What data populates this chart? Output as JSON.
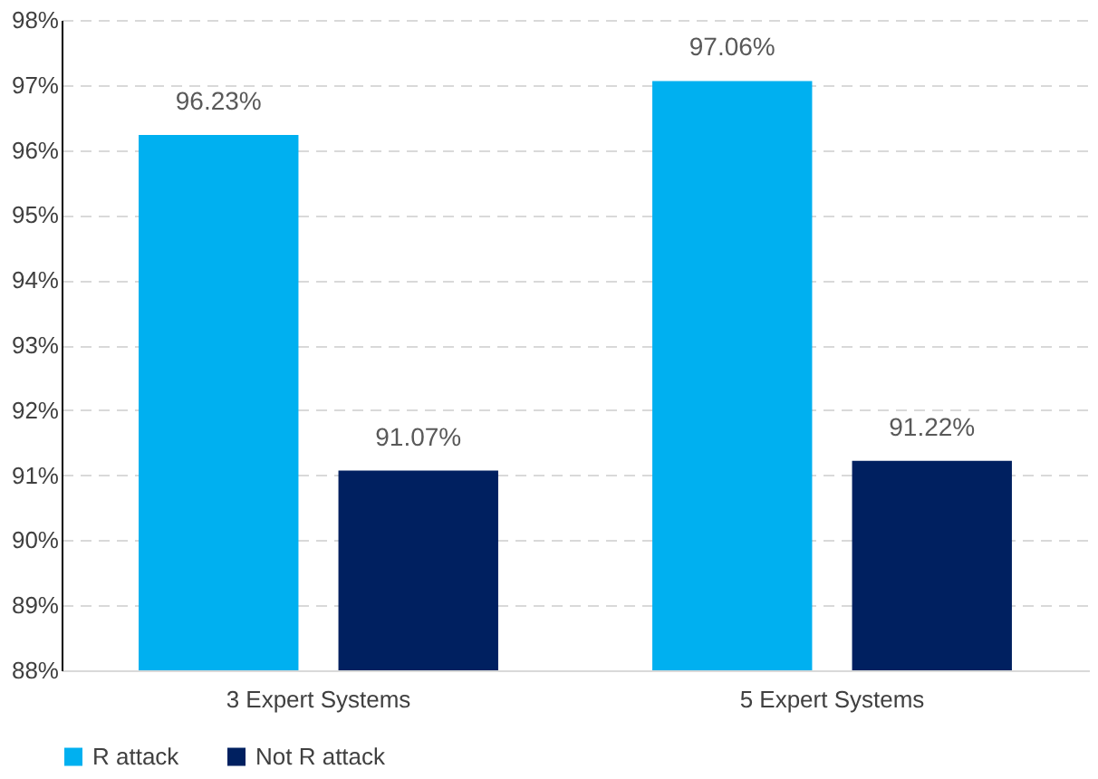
{
  "chart_data": {
    "type": "bar",
    "categories": [
      "3 Expert Systems",
      "5 Expert Systems"
    ],
    "series": [
      {
        "name": "R attack",
        "color": "#00b0f0",
        "values": [
          96.23,
          97.06
        ],
        "value_labels": [
          "96.23%",
          "97.06%"
        ]
      },
      {
        "name": "Not R attack",
        "color": "#002060",
        "values": [
          91.07,
          91.22
        ],
        "value_labels": [
          "91.07%",
          "91.22%"
        ]
      }
    ],
    "ylim": [
      88,
      98
    ],
    "yticks": [
      {
        "value": 88,
        "label": "88%"
      },
      {
        "value": 89,
        "label": "89%"
      },
      {
        "value": 90,
        "label": "90%"
      },
      {
        "value": 91,
        "label": "91%"
      },
      {
        "value": 92,
        "label": "92%"
      },
      {
        "value": 93,
        "label": "93%"
      },
      {
        "value": 94,
        "label": "94%"
      },
      {
        "value": 95,
        "label": "95%"
      },
      {
        "value": 96,
        "label": "96%"
      },
      {
        "value": 97,
        "label": "97%"
      },
      {
        "value": 98,
        "label": "98%"
      }
    ],
    "grid": "y",
    "legend": "bottom"
  }
}
